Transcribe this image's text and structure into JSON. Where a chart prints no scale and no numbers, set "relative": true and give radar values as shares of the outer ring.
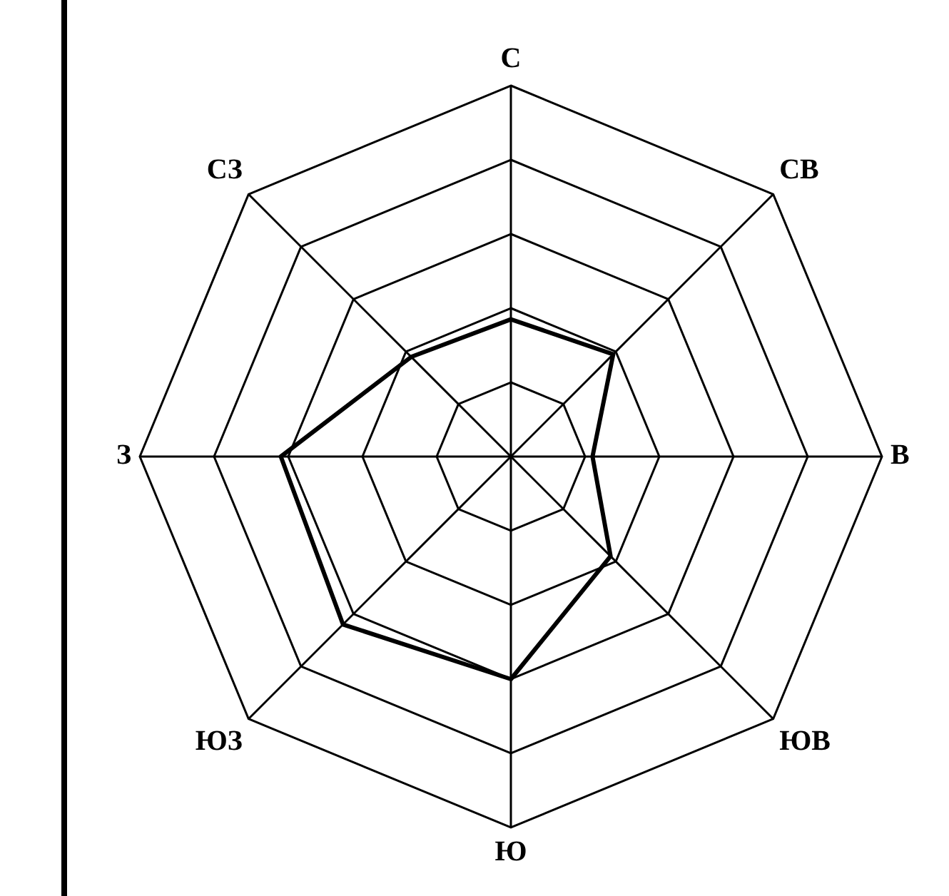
{
  "chart_data": {
    "type": "radar",
    "relative": true,
    "categories": [
      "С",
      "СВ",
      "В",
      "ЮВ",
      "Ю",
      "ЮЗ",
      "З",
      "СЗ"
    ],
    "marker": "none",
    "legend": false,
    "series": [
      {
        "color": "#000000",
        "values": [
          0.37,
          0.39,
          0.22,
          0.38,
          0.6,
          0.64,
          0.62,
          0.38
        ]
      }
    ]
  }
}
